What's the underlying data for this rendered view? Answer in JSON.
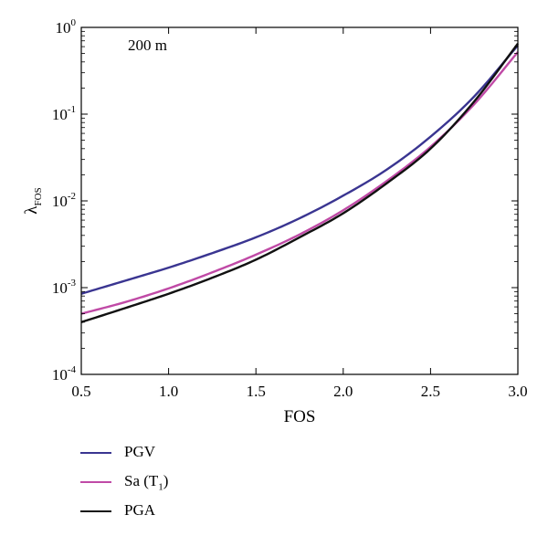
{
  "chart_data": {
    "type": "line",
    "xlabel": "FOS",
    "ylabel_main": "λ",
    "ylabel_sub": "FOS",
    "annotation": "200 m",
    "xlim": [
      0.5,
      3.0
    ],
    "ylim": [
      0.0001,
      1
    ],
    "yscale": "log",
    "grid": false,
    "legend_position": "below",
    "x_ticks": [
      "0.5",
      "1.0",
      "1.5",
      "2.0",
      "2.5",
      "3.0"
    ],
    "y_ticks": [
      {
        "base": "10",
        "exp": "-4"
      },
      {
        "base": "10",
        "exp": "-3"
      },
      {
        "base": "10",
        "exp": "-2"
      },
      {
        "base": "10",
        "exp": "-1"
      },
      {
        "base": "10",
        "exp": "0"
      }
    ],
    "x": [
      0.5,
      0.75,
      1.0,
      1.25,
      1.5,
      1.75,
      2.0,
      2.25,
      2.5,
      2.75,
      3.0
    ],
    "series": [
      {
        "name": "PGV",
        "label_main": "PGV",
        "label_sub": "",
        "label_suffix": "",
        "color": "#3a3591",
        "values": [
          0.00085,
          0.0012,
          0.0017,
          0.0025,
          0.0038,
          0.0063,
          0.0115,
          0.023,
          0.055,
          0.16,
          0.62
        ]
      },
      {
        "name": "Sa (T1)",
        "label_main": "Sa (T",
        "label_sub": "1",
        "label_suffix": ")",
        "color": "#c04aa6",
        "values": [
          0.0005,
          0.00068,
          0.00098,
          0.0015,
          0.0024,
          0.0041,
          0.0078,
          0.017,
          0.042,
          0.13,
          0.52
        ]
      },
      {
        "name": "PGA",
        "label_main": "PGA",
        "label_sub": "",
        "label_suffix": "",
        "color": "#111111",
        "values": [
          0.0004,
          0.00058,
          0.00085,
          0.0013,
          0.0021,
          0.0038,
          0.0072,
          0.016,
          0.04,
          0.14,
          0.65
        ]
      }
    ]
  }
}
